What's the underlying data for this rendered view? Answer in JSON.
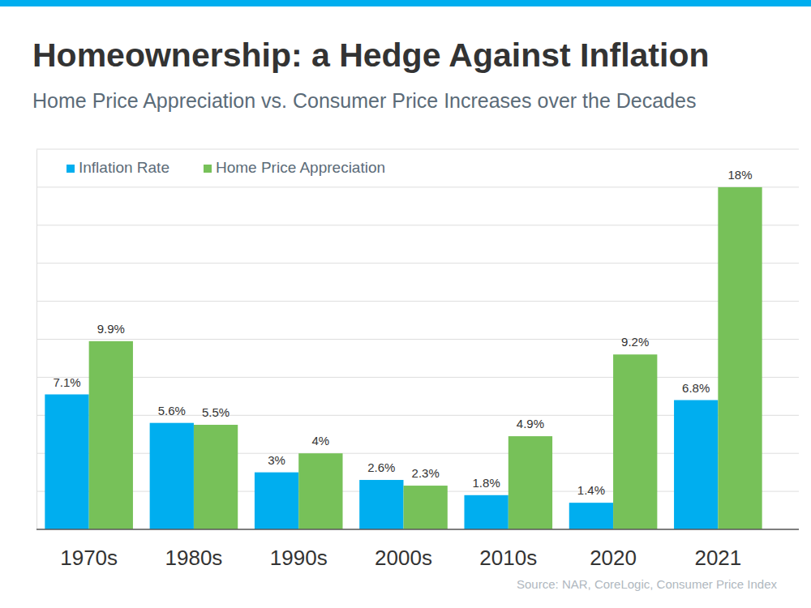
{
  "chart_data": {
    "type": "bar",
    "title": "Homeownership: a Hedge Against Inflation",
    "subtitle": "Home Price Appreciation vs. Consumer Price Increases over the Decades",
    "source": "Source: NAR, CoreLogic, Consumer Price Index",
    "categories": [
      "1970s",
      "1980s",
      "1990s",
      "2000s",
      "2010s",
      "2020",
      "2021"
    ],
    "series": [
      {
        "name": "Inflation Rate",
        "color": "#00aeef",
        "values": [
          7.1,
          5.6,
          3,
          2.6,
          1.8,
          1.4,
          6.8
        ],
        "value_labels": [
          "7.1%",
          "5.6%",
          "3%",
          "2.6%",
          "1.8%",
          "1.4%",
          "6.8%"
        ]
      },
      {
        "name": "Home Price Appreciation",
        "color": "#77c159",
        "values": [
          9.9,
          5.5,
          4,
          2.3,
          4.9,
          9.2,
          18
        ],
        "value_labels": [
          "9.9%",
          "5.5%",
          "4%",
          "2.3%",
          "4.9%",
          "9.2%",
          "18%"
        ]
      }
    ],
    "ylim": [
      0,
      20
    ],
    "yticks": [
      0,
      2,
      4,
      6,
      8,
      10,
      12,
      14,
      16,
      18,
      20
    ],
    "grid": true,
    "legend": "top-left",
    "data_labels": true,
    "tick_labels": "x"
  }
}
